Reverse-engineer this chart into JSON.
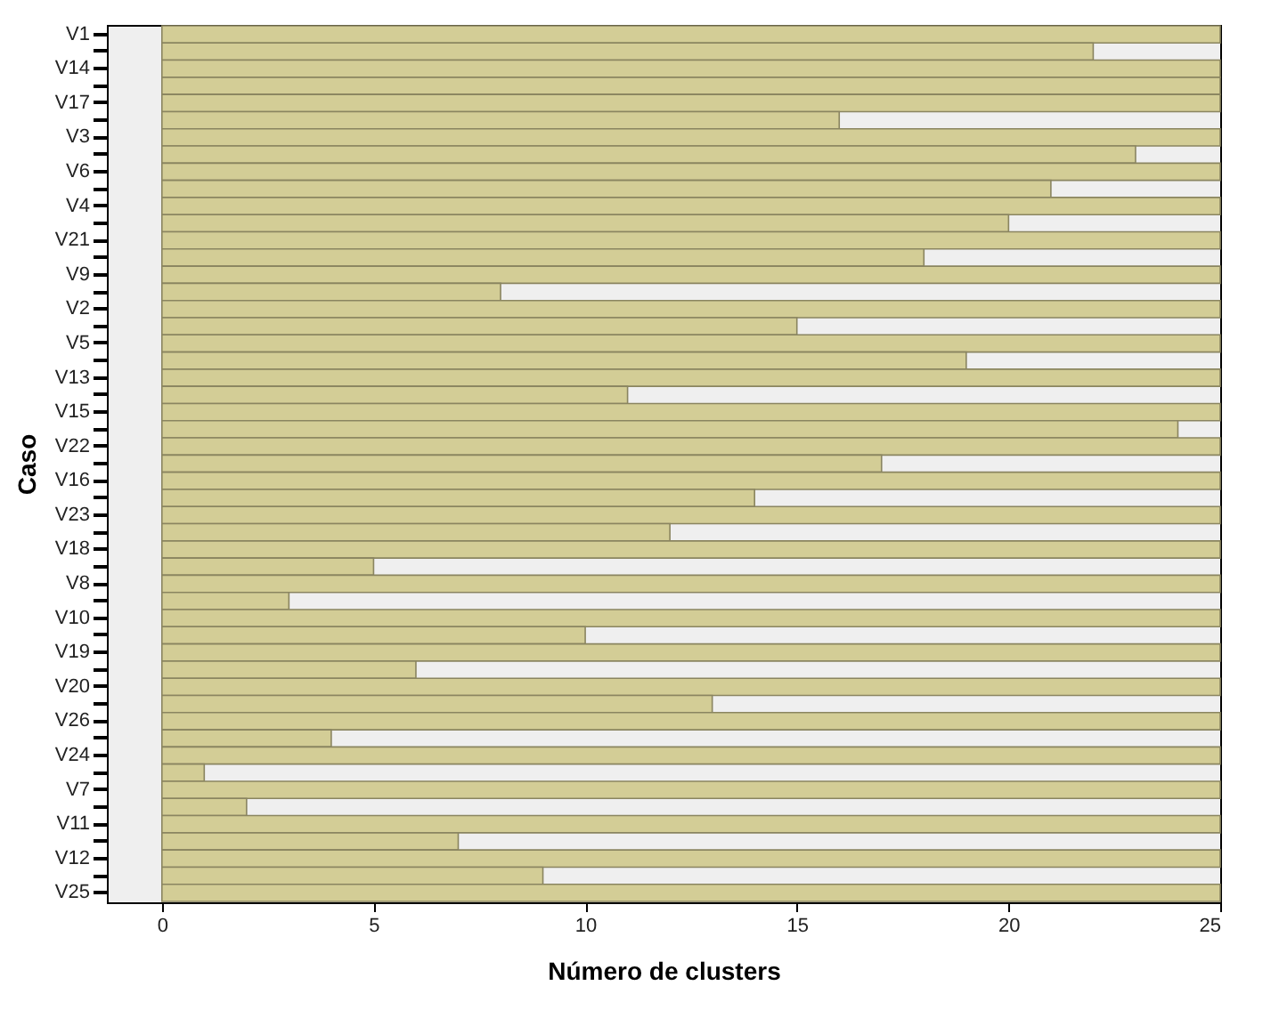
{
  "chart_data": {
    "type": "bar",
    "orientation": "horizontal",
    "xlabel": "Número de clusters",
    "ylabel": "Caso",
    "categories": [
      "V1",
      null,
      "V14",
      null,
      "V17",
      null,
      "V3",
      null,
      "V6",
      null,
      "V4",
      null,
      "V21",
      null,
      "V9",
      null,
      "V2",
      null,
      "V5",
      null,
      "V13",
      null,
      "V15",
      null,
      "V22",
      null,
      "V16",
      null,
      "V23",
      null,
      "V18",
      null,
      "V8",
      null,
      "V10",
      null,
      "V19",
      null,
      "V20",
      null,
      "V26",
      null,
      "V24",
      null,
      "V7",
      null,
      "V11",
      null,
      "V12",
      null,
      "V25"
    ],
    "values": [
      25,
      22,
      25,
      25,
      25,
      16,
      25,
      23,
      25,
      21,
      25,
      20,
      25,
      18,
      25,
      8,
      25,
      15,
      25,
      19,
      25,
      11,
      25,
      24,
      25,
      17,
      25,
      14,
      25,
      12,
      25,
      5,
      25,
      3,
      25,
      10,
      25,
      6,
      25,
      13,
      25,
      4,
      25,
      1,
      25,
      2,
      25,
      7,
      25,
      9,
      25
    ],
    "color": "#d3cd96",
    "xlim": [
      -1.3,
      25
    ],
    "xticks": [
      0,
      5,
      10,
      15,
      20,
      25
    ],
    "grid": false
  }
}
